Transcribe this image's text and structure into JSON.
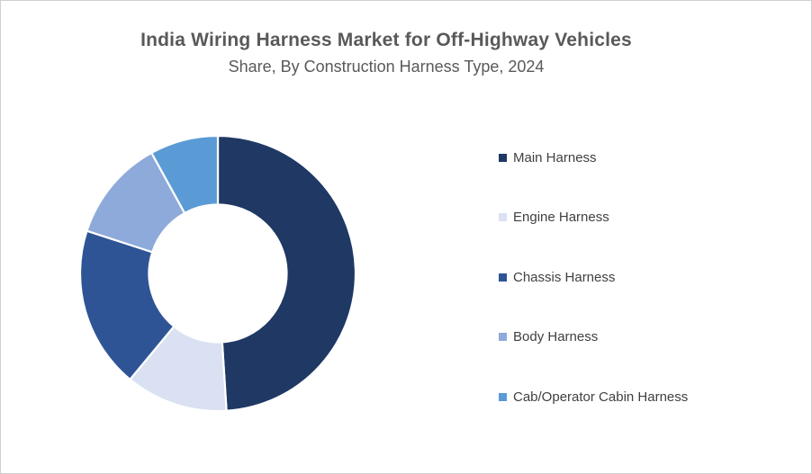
{
  "title": "India Wiring Harness Market for Off-Highway Vehicles",
  "subtitle": "Share, By Construction Harness Type, 2024",
  "chart_data": {
    "type": "pie",
    "subtype": "donut",
    "title": "India Wiring Harness Market for Off-Highway Vehicles",
    "subtitle": "Share, By Construction Harness Type, 2024",
    "categories": [
      "Main Harness",
      "Engine Harness",
      "Chassis Harness",
      "Body Harness",
      "Cab/Operator Cabin Harness"
    ],
    "values": [
      49,
      12,
      19,
      12,
      8
    ],
    "values_note": "percent share estimated from slice arc angles; no data labels are shown in the chart",
    "colors": [
      "#1F3864",
      "#D9E1F2",
      "#2F5496",
      "#8EAADB",
      "#5B9BD5"
    ],
    "start_angle_deg": 0,
    "direction": "clockwise",
    "donut_hole_ratio": 0.5,
    "slice_gap_color": "#FFFFFF",
    "legend_position": "right",
    "grid": false
  },
  "legend": {
    "items": [
      {
        "label": "Main Harness",
        "color": "#1F3864"
      },
      {
        "label": "Engine Harness",
        "color": "#D9E1F2"
      },
      {
        "label": "Chassis Harness",
        "color": "#2F5496"
      },
      {
        "label": "Body Harness",
        "color": "#8EAADB"
      },
      {
        "label": "Cab/Operator Cabin Harness",
        "color": "#5B9BD5"
      }
    ]
  },
  "styles": {
    "title_color": "#595959",
    "legend_text_color": "#404040",
    "frame_border_color": "#CFCFCF",
    "background_color": "#FFFFFF"
  }
}
